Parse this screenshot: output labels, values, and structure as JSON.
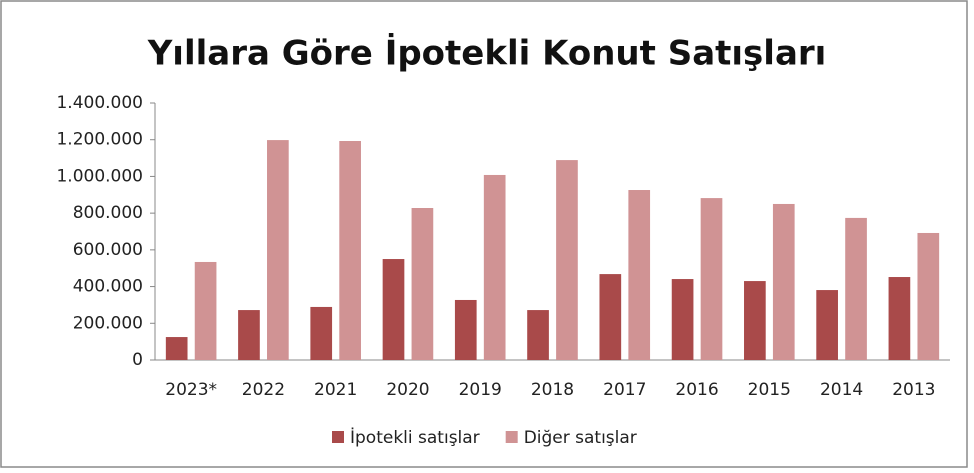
{
  "chart_data": {
    "type": "bar",
    "title": "Yıllara Göre İpotekli Konut Satışları",
    "categories": [
      "2023*",
      "2022",
      "2021",
      "2020",
      "2019",
      "2018",
      "2017",
      "2016",
      "2015",
      "2014",
      "2013"
    ],
    "series": [
      {
        "name": "İpotekli satışlar",
        "color": "#a94a4a",
        "values": [
          125000,
          272000,
          289000,
          550000,
          327000,
          272000,
          468000,
          441000,
          430000,
          381000,
          452000
        ]
      },
      {
        "name": "Diğer satışlar",
        "color": "#d09394",
        "values": [
          534000,
          1198000,
          1193000,
          828000,
          1008000,
          1089000,
          926000,
          882000,
          850000,
          774000,
          692000
        ]
      }
    ],
    "ylim": [
      0,
      1400000
    ],
    "yticks": [
      0,
      {
        "value": 200000,
        "label": "200.000"
      },
      {
        "value": 400000,
        "label": "400.000"
      },
      {
        "value": 600000,
        "label": "600.000"
      },
      {
        "value": 800000,
        "label": "800.000"
      },
      {
        "value": 1000000,
        "label": "1.000.000"
      },
      {
        "value": 1200000,
        "label": "1.200.000"
      },
      {
        "value": 1400000,
        "label": "1.400.000"
      }
    ],
    "legend": "bottom"
  }
}
